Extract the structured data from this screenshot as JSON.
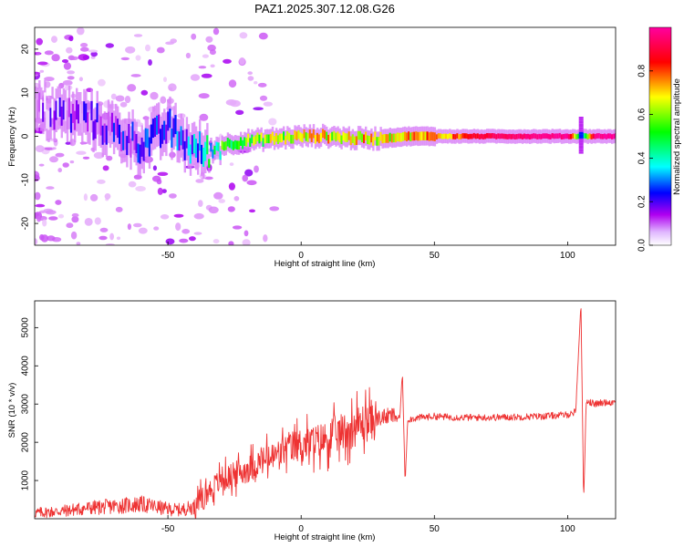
{
  "figure": {
    "title": "PAZ1.2025.307.12.08.G26"
  },
  "chart_data": [
    {
      "type": "heatmap",
      "name": "spectrogram",
      "xlabel": "Height of straight line (km)",
      "ylabel": "Frequency (Hz)",
      "xlim": [
        -100,
        118
      ],
      "ylim": [
        -25,
        25
      ],
      "xticks": [
        -50,
        0,
        50,
        100
      ],
      "yticks": [
        -20,
        -10,
        0,
        10,
        20
      ],
      "colorbar": {
        "label": "Normalized spectral amplitude",
        "range": [
          0,
          1
        ],
        "ticks": [
          0.0,
          0.2,
          0.4,
          0.6,
          0.8
        ],
        "colormap": [
          "#ffffff",
          "#b000f0",
          "#0000ff",
          "#00ffff",
          "#00ff00",
          "#ffff00",
          "#ff0000",
          "#ff00a0"
        ]
      },
      "ridge": {
        "x": [
          -100,
          -90,
          -80,
          -70,
          -60,
          -50,
          -45,
          -40,
          -35,
          -30,
          -20,
          -10,
          0,
          10,
          20,
          30,
          40,
          50,
          60,
          70,
          80,
          90,
          100,
          105,
          110,
          118
        ],
        "freq": [
          6,
          5,
          4,
          1,
          -2,
          2,
          -1,
          -3,
          -4,
          -2,
          -1,
          -0.5,
          0,
          0,
          -0.5,
          -0.5,
          0,
          0,
          0,
          0,
          0,
          0,
          0,
          0,
          0,
          0
        ],
        "amplitude": [
          0.1,
          0.12,
          0.15,
          0.2,
          0.25,
          0.28,
          0.3,
          0.35,
          0.45,
          0.55,
          0.6,
          0.65,
          0.7,
          0.72,
          0.72,
          0.68,
          0.72,
          0.78,
          0.85,
          0.92,
          0.95,
          0.97,
          0.98,
          0.4,
          0.99,
          0.99
        ]
      }
    },
    {
      "type": "line",
      "name": "snr",
      "xlabel": "Height of straight line (km)",
      "ylabel": "SNR (10 * v/v)",
      "xlim": [
        -100,
        118
      ],
      "ylim": [
        0,
        5700
      ],
      "xticks": [
        -50,
        0,
        50,
        100
      ],
      "yticks": [
        1000,
        2000,
        3000,
        4000,
        5000
      ],
      "color": "#ee3333",
      "series": [
        {
          "name": "SNR",
          "x": [
            -100,
            -90,
            -80,
            -70,
            -60,
            -50,
            -45,
            -40,
            -38,
            -35,
            -32,
            -30,
            -25,
            -20,
            -15,
            -10,
            -5,
            0,
            5,
            10,
            15,
            20,
            25,
            30,
            35,
            37,
            38,
            39,
            40,
            45,
            50,
            55,
            60,
            70,
            80,
            90,
            95,
            100,
            103,
            104,
            105,
            106,
            107,
            110,
            115,
            118
          ],
          "y": [
            150,
            200,
            280,
            330,
            380,
            250,
            230,
            320,
            500,
            700,
            900,
            1000,
            1150,
            1300,
            1500,
            1620,
            1850,
            1950,
            2000,
            2100,
            2250,
            2400,
            2550,
            2650,
            2700,
            2600,
            3850,
            950,
            2600,
            2650,
            2680,
            2660,
            2650,
            2650,
            2660,
            2680,
            2700,
            2720,
            2800,
            4200,
            5650,
            450,
            3100,
            3000,
            3050,
            3050
          ]
        }
      ]
    }
  ]
}
